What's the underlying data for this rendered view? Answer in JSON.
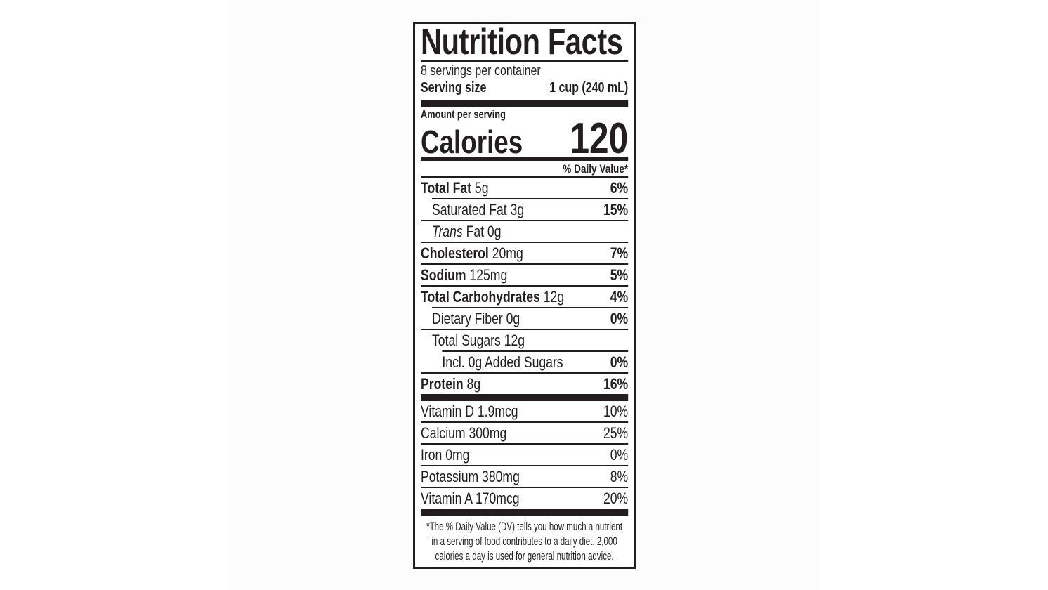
{
  "page": {
    "backdrop_color": "#fcfcfc",
    "ink_color": "#221e1f"
  },
  "label": {
    "title": "Nutrition Facts",
    "servings_per_container": "8 servings per container",
    "serving_size": {
      "label": "Serving size",
      "value": "1 cup (240 mL)"
    },
    "amount_per_serving_label": "Amount per serving",
    "calories": {
      "label": "Calories",
      "value": "120"
    },
    "daily_value_header": "% Daily Value*",
    "nutrient_rows": [
      {
        "name": "Total Fat",
        "name_bold": true,
        "amount": "5g",
        "dv": "6%",
        "dv_bold": true,
        "indent": 0,
        "sep_above": "none"
      },
      {
        "name": "Saturated Fat",
        "amount": "3g",
        "dv": "15%",
        "dv_bold": true,
        "indent": 1,
        "sep_above": "indent1"
      },
      {
        "name_italic": "Trans",
        "name": "Fat",
        "amount": "0g",
        "dv": "",
        "indent": 1,
        "sep_above": "full"
      },
      {
        "name": "Cholesterol",
        "name_bold": true,
        "amount": "20mg",
        "dv": "7%",
        "dv_bold": true,
        "indent": 0,
        "sep_above": "full"
      },
      {
        "name": "Sodium",
        "name_bold": true,
        "amount": "125mg",
        "dv": "5%",
        "dv_bold": true,
        "indent": 0,
        "sep_above": "full"
      },
      {
        "name": "Total Carbohydrates",
        "name_bold": true,
        "amount": "12g",
        "dv": "4%",
        "dv_bold": true,
        "indent": 0,
        "sep_above": "full"
      },
      {
        "name": "Dietary Fiber",
        "amount": "0g",
        "dv": "0%",
        "dv_bold": true,
        "indent": 1,
        "sep_above": "indent1"
      },
      {
        "name": "Total Sugars",
        "amount": "12g",
        "dv": "",
        "indent": 1,
        "sep_above": "full"
      },
      {
        "name": "Incl. 0g Added Sugars",
        "amount": "",
        "dv": "0%",
        "dv_bold": true,
        "indent": 2,
        "sep_above": "indent2"
      },
      {
        "name": "Protein",
        "name_bold": true,
        "amount": "8g",
        "dv": "16%",
        "dv_bold": true,
        "indent": 0,
        "sep_above": "full"
      }
    ],
    "vitamin_rows": [
      {
        "name": "Vitamin D 1.9mcg",
        "dv": "10%",
        "sep_above": "none"
      },
      {
        "name": "Calcium 300mg",
        "dv": "25%",
        "sep_above": "full"
      },
      {
        "name": "Iron 0mg",
        "dv": "0%",
        "sep_above": "full"
      },
      {
        "name": "Potassium 380mg",
        "dv": "8%",
        "sep_above": "full"
      },
      {
        "name": "Vitamin A 170mcg",
        "dv": "20%",
        "sep_above": "full"
      }
    ],
    "footnote_lines": [
      "*The % Daily Value (DV) tells you how much a nutrient",
      "in a serving of food contributes to a daily diet. 2,000",
      "calories a day is used for general nutrition advice."
    ]
  }
}
